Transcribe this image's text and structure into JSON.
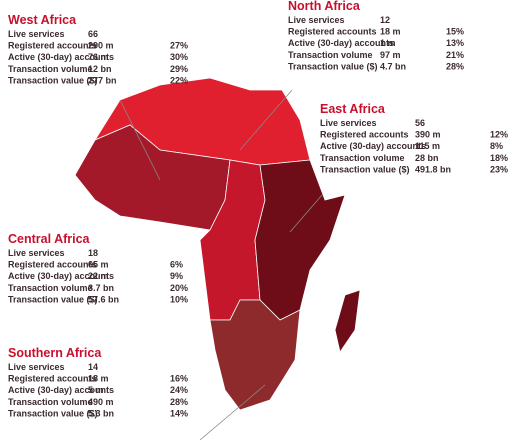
{
  "regions": [
    {
      "title": "West Africa",
      "rows": [
        {
          "label": "Live services",
          "value": "66",
          "percent": null
        },
        {
          "label": "Registered accounts",
          "value": "290 m",
          "percent": "27%"
        },
        {
          "label": "Active (30-day) accounts",
          "value": "76 m",
          "percent": "30%"
        },
        {
          "label": "Transaction volume",
          "value": "12 bn",
          "percent": "29%"
        },
        {
          "label": "Transaction value ($)",
          "value": "277 bn",
          "percent": "22%"
        }
      ]
    },
    {
      "title": "North Africa",
      "rows": [
        {
          "label": "Live services",
          "value": "12",
          "percent": null
        },
        {
          "label": "Registered accounts",
          "value": "18 m",
          "percent": "15%"
        },
        {
          "label": "Active (30-day) accounts",
          "value": "1 m",
          "percent": "13%"
        },
        {
          "label": "Transaction volume",
          "value": "97 m",
          "percent": "21%"
        },
        {
          "label": "Transaction value ($)",
          "value": "4.7 bn",
          "percent": "28%"
        }
      ]
    },
    {
      "title": "East Africa",
      "rows": [
        {
          "label": "Live services",
          "value": "56",
          "percent": null
        },
        {
          "label": "Registered accounts",
          "value": "390 m",
          "percent": "12%"
        },
        {
          "label": "Active (30-day) accounts",
          "value": "115 m",
          "percent": "8%"
        },
        {
          "label": "Transaction volume",
          "value": "28 bn",
          "percent": "18%"
        },
        {
          "label": "Transaction value ($)",
          "value": "491.8 bn",
          "percent": "23%"
        }
      ]
    },
    {
      "title": "Central Africa",
      "rows": [
        {
          "label": "Live services",
          "value": "18",
          "percent": null
        },
        {
          "label": "Registered accounts",
          "value": "65 m",
          "percent": "6%"
        },
        {
          "label": "Active (30-day) accounts",
          "value": "22 m",
          "percent": "9%"
        },
        {
          "label": "Transaction volume",
          "value": "3.7 bn",
          "percent": "20%"
        },
        {
          "label": "Transaction value ($)",
          "value": "57.6 bn",
          "percent": "10%"
        }
      ]
    },
    {
      "title": "Southern Africa",
      "rows": [
        {
          "label": "Live services",
          "value": "14",
          "percent": null
        },
        {
          "label": "Registered accounts",
          "value": "18 m",
          "percent": "16%"
        },
        {
          "label": "Active (30-day) accounts",
          "value": "5 m",
          "percent": "24%"
        },
        {
          "label": "Transaction volume",
          "value": "490 m",
          "percent": "28%"
        },
        {
          "label": "Transaction value ($)",
          "value": "5.3 bn",
          "percent": "14%"
        }
      ]
    }
  ]
}
